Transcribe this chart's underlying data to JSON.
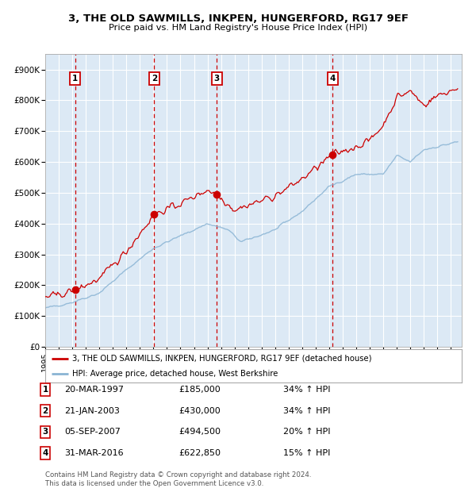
{
  "title": "3, THE OLD SAWMILLS, INKPEN, HUNGERFORD, RG17 9EF",
  "subtitle": "Price paid vs. HM Land Registry's House Price Index (HPI)",
  "ylim": [
    0,
    950000
  ],
  "yticks": [
    0,
    100000,
    200000,
    300000,
    400000,
    500000,
    600000,
    700000,
    800000,
    900000
  ],
  "ytick_labels": [
    "£0",
    "£100K",
    "£200K",
    "£300K",
    "£400K",
    "£500K",
    "£600K",
    "£700K",
    "£800K",
    "£900K"
  ],
  "xlim_start": 1995.0,
  "xlim_end": 2025.8,
  "background_color": "#dce9f5",
  "grid_color": "#ffffff",
  "legend_line1": "3, THE OLD SAWMILLS, INKPEN, HUNGERFORD, RG17 9EF (detached house)",
  "legend_line2": "HPI: Average price, detached house, West Berkshire",
  "red_line_color": "#cc0000",
  "blue_line_color": "#8ab4d4",
  "sale_marker_color": "#cc0000",
  "dashed_vline_color": "#cc0000",
  "transactions": [
    {
      "num": 1,
      "date": "20-MAR-1997",
      "year": 1997.21,
      "price": 185000,
      "pct": "34%",
      "dir": "↑"
    },
    {
      "num": 2,
      "date": "21-JAN-2003",
      "year": 2003.06,
      "price": 430000,
      "pct": "34%",
      "dir": "↑"
    },
    {
      "num": 3,
      "date": "05-SEP-2007",
      "year": 2007.68,
      "price": 494500,
      "pct": "20%",
      "dir": "↑"
    },
    {
      "num": 4,
      "date": "31-MAR-2016",
      "year": 2016.25,
      "price": 622850,
      "pct": "15%",
      "dir": "↑"
    }
  ],
  "footnote1": "Contains HM Land Registry data © Crown copyright and database right 2024.",
  "footnote2": "This data is licensed under the Open Government Licence v3.0."
}
